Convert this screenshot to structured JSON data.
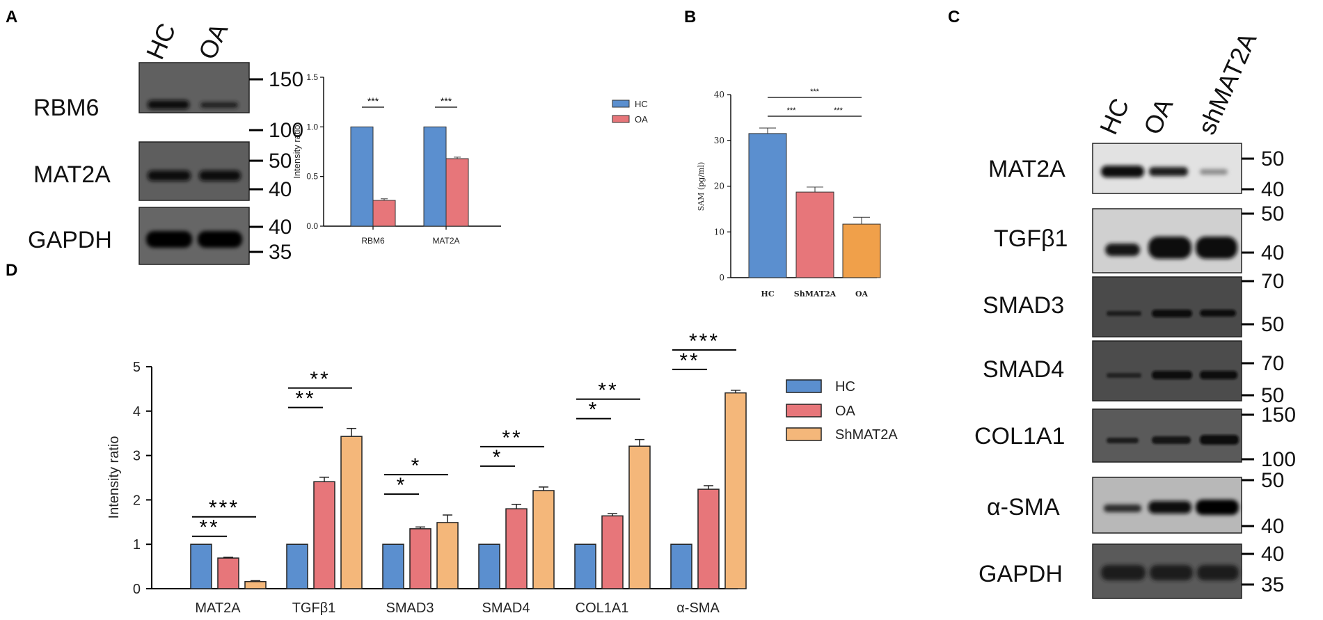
{
  "panels": {
    "A": "A",
    "B": "B",
    "C": "C",
    "D": "D"
  },
  "blot_a": {
    "lanes": [
      "HC",
      "OA"
    ],
    "rows": [
      {
        "label": "RBM6",
        "markers": [
          "150",
          "100"
        ]
      },
      {
        "label": "MAT2A",
        "markers": [
          "50",
          "40"
        ]
      },
      {
        "label": "GAPDH",
        "markers": [
          "40",
          "35"
        ]
      }
    ]
  },
  "blot_c": {
    "lanes": [
      "HC",
      "OA",
      "shMAT2A"
    ],
    "rows": [
      {
        "label": "MAT2A",
        "markers": [
          "50",
          "40"
        ]
      },
      {
        "label": "TGFβ1",
        "markers": [
          "50",
          "40"
        ]
      },
      {
        "label": "SMAD3",
        "markers": [
          "70",
          "50"
        ]
      },
      {
        "label": "SMAD4",
        "markers": [
          "70",
          "50"
        ]
      },
      {
        "label": "COL1A1",
        "markers": [
          "150",
          "100"
        ]
      },
      {
        "label": "α-SMA",
        "markers": [
          "50",
          "40"
        ]
      },
      {
        "label": "GAPDH",
        "markers": [
          "40",
          "35"
        ]
      }
    ]
  },
  "colors": {
    "HC": "#5b8fcf",
    "OA": "#e7767a",
    "ShMAT2A": "#f4b77a",
    "SAM_OA": "#f0a04a"
  },
  "chart_data": [
    {
      "id": "A",
      "type": "bar",
      "categories": [
        "RBM6",
        "MAT2A"
      ],
      "series": [
        {
          "name": "HC",
          "values": [
            1.0,
            1.0
          ],
          "errors": [
            0,
            0
          ]
        },
        {
          "name": "OA",
          "values": [
            0.26,
            0.68
          ],
          "errors": [
            0.015,
            0.015
          ]
        }
      ],
      "ylabel": "Intensity ratio",
      "ylim": [
        0,
        1.5
      ],
      "yticks": [
        "0.0",
        "0.5",
        "1.0",
        "1.5"
      ],
      "significance": [
        "***",
        "***"
      ],
      "legend": [
        "HC",
        "OA"
      ]
    },
    {
      "id": "B",
      "type": "bar",
      "categories": [
        "HC",
        "ShMAT2A",
        "OA"
      ],
      "values": [
        31.5,
        18.7,
        11.7
      ],
      "errors": [
        1.2,
        1.1,
        1.5
      ],
      "ylabel": "SAM (pg/ml)",
      "ylim": [
        0,
        40
      ],
      "yticks": [
        "0",
        "10",
        "20",
        "30",
        "40"
      ],
      "significance": [
        "***",
        "***",
        "***"
      ]
    },
    {
      "id": "D",
      "type": "bar",
      "categories": [
        "MAT2A",
        "TGFβ1",
        "SMAD3",
        "SMAD4",
        "COL1A1",
        "α-SMA"
      ],
      "series": [
        {
          "name": "HC",
          "values": [
            1.0,
            1.0,
            1.0,
            1.0,
            1.0,
            1.0
          ],
          "errors": [
            0,
            0,
            0,
            0,
            0,
            0
          ]
        },
        {
          "name": "OA",
          "values": [
            0.69,
            2.41,
            1.35,
            1.8,
            1.64,
            2.24
          ],
          "errors": [
            0.02,
            0.1,
            0.04,
            0.1,
            0.05,
            0.08
          ]
        },
        {
          "name": "ShMAT2A",
          "values": [
            0.16,
            3.43,
            1.49,
            2.21,
            3.21,
            4.41
          ],
          "errors": [
            0.02,
            0.18,
            0.17,
            0.08,
            0.15,
            0.06
          ]
        }
      ],
      "ylabel": "Intensity ratio",
      "ylim": [
        0,
        5
      ],
      "yticks": [
        "0",
        "1",
        "2",
        "3",
        "4",
        "5"
      ],
      "significance": [
        {
          "oa": "**",
          "sh": "***"
        },
        {
          "oa": "**",
          "sh": "**"
        },
        {
          "oa": "*",
          "sh": "*"
        },
        {
          "oa": "*",
          "sh": "**"
        },
        {
          "oa": "*",
          "sh": "**"
        },
        {
          "oa": "**",
          "sh": "***"
        }
      ],
      "legend": [
        "HC",
        "OA",
        "ShMAT2A"
      ]
    }
  ]
}
